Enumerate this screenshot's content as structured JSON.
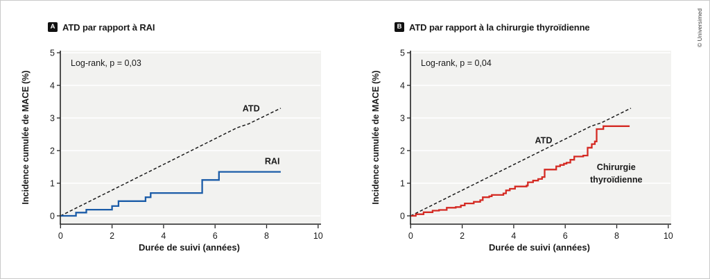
{
  "window": {
    "credit": "© Universimed"
  },
  "colors": {
    "plot_bg": "#f2f2f0",
    "grid": "#ffffff",
    "axis": "#222222",
    "atd_line": "#1a1a1a",
    "rai_line": "#1b5ca8",
    "surgery_line": "#d42a23"
  },
  "panels": [
    {
      "badge": "A",
      "title": "ATD par rapport à RAI",
      "annotation": "Log-rank, p = 0,03",
      "xlabel": "Durée de suivi (années)",
      "ylabel": "Incidence cumulée de MACE (%)"
    },
    {
      "badge": "B",
      "title": "ATD par rapport à la chirurgie thyroïdienne",
      "annotation": "Log-rank, p = 0,04",
      "xlabel": "Durée de suivi (années)",
      "ylabel": "Incidence cumulée de MACE (%)"
    }
  ],
  "chart_data": [
    {
      "type": "line",
      "title": "ATD par rapport à RAI",
      "xlabel": "Durée de suivi (années)",
      "ylabel": "Incidence cumulée de MACE (%)",
      "xlim": [
        0,
        10
      ],
      "ylim": [
        0,
        5
      ],
      "xticks": [
        0,
        2,
        4,
        6,
        8,
        10
      ],
      "yticks": [
        0,
        1,
        2,
        3,
        4,
        5
      ],
      "grid": true,
      "annotation": "Log-rank, p = 0,03",
      "series": [
        {
          "name": "ATD",
          "style": "dashed",
          "color": "#1a1a1a",
          "interpolation": "linear",
          "points": [
            [
              0,
              0
            ],
            [
              6.85,
              2.7
            ],
            [
              7.3,
              2.82
            ],
            [
              8.55,
              3.3
            ]
          ],
          "label": {
            "lines": [
              "ATD"
            ],
            "x": 7.4,
            "y": 3.3
          }
        },
        {
          "name": "RAI",
          "style": "solid",
          "color": "#1b5ca8",
          "interpolation": "step-after",
          "points": [
            [
              0,
              0
            ],
            [
              0.6,
              0.1
            ],
            [
              1.0,
              0.19
            ],
            [
              2.0,
              0.3
            ],
            [
              2.25,
              0.45
            ],
            [
              3.3,
              0.57
            ],
            [
              3.5,
              0.7
            ],
            [
              5.5,
              1.1
            ],
            [
              6.15,
              1.35
            ],
            [
              8.55,
              1.35
            ]
          ],
          "label": {
            "lines": [
              "RAI"
            ],
            "x": 8.22,
            "y": 1.68
          }
        }
      ]
    },
    {
      "type": "line",
      "title": "ATD par rapport à la chirurgie thyroïdienne",
      "xlabel": "Durée de suivi (années)",
      "ylabel": "Incidence cumulée de MACE (%)",
      "xlim": [
        0,
        10
      ],
      "ylim": [
        0,
        5
      ],
      "xticks": [
        0,
        2,
        4,
        6,
        8,
        10
      ],
      "yticks": [
        0,
        1,
        2,
        3,
        4,
        5
      ],
      "grid": true,
      "annotation": "Log-rank, p = 0,04",
      "series": [
        {
          "name": "ATD",
          "style": "dashed",
          "color": "#1a1a1a",
          "interpolation": "linear",
          "points": [
            [
              0,
              0
            ],
            [
              7.0,
              2.75
            ],
            [
              7.4,
              2.85
            ],
            [
              8.55,
              3.3
            ]
          ],
          "label": {
            "lines": [
              "ATD"
            ],
            "x": 5.16,
            "y": 2.32
          }
        },
        {
          "name": "Chirurgie thyroïdienne",
          "style": "solid",
          "color": "#d42a23",
          "interpolation": "step-after",
          "points": [
            [
              0,
              0
            ],
            [
              0.2,
              0.05
            ],
            [
              0.5,
              0.11
            ],
            [
              0.85,
              0.16
            ],
            [
              1.1,
              0.18
            ],
            [
              1.4,
              0.25
            ],
            [
              1.75,
              0.27
            ],
            [
              1.95,
              0.32
            ],
            [
              2.1,
              0.38
            ],
            [
              2.45,
              0.43
            ],
            [
              2.7,
              0.48
            ],
            [
              2.8,
              0.57
            ],
            [
              3.05,
              0.6
            ],
            [
              3.15,
              0.64
            ],
            [
              3.6,
              0.69
            ],
            [
              3.7,
              0.78
            ],
            [
              3.85,
              0.83
            ],
            [
              4.05,
              0.9
            ],
            [
              4.5,
              0.93
            ],
            [
              4.55,
              1.03
            ],
            [
              4.75,
              1.08
            ],
            [
              4.95,
              1.13
            ],
            [
              5.1,
              1.19
            ],
            [
              5.2,
              1.42
            ],
            [
              5.55,
              1.42
            ],
            [
              5.65,
              1.52
            ],
            [
              5.8,
              1.56
            ],
            [
              5.95,
              1.6
            ],
            [
              6.05,
              1.63
            ],
            [
              6.2,
              1.72
            ],
            [
              6.35,
              1.82
            ],
            [
              6.7,
              1.85
            ],
            [
              6.87,
              2.09
            ],
            [
              7.03,
              2.2
            ],
            [
              7.15,
              2.28
            ],
            [
              7.22,
              2.66
            ],
            [
              7.48,
              2.75
            ],
            [
              8.5,
              2.75
            ]
          ],
          "label": {
            "lines": [
              "Chirurgie",
              "thyroïdienne"
            ],
            "x": 7.98,
            "y": 1.5
          }
        }
      ]
    }
  ]
}
